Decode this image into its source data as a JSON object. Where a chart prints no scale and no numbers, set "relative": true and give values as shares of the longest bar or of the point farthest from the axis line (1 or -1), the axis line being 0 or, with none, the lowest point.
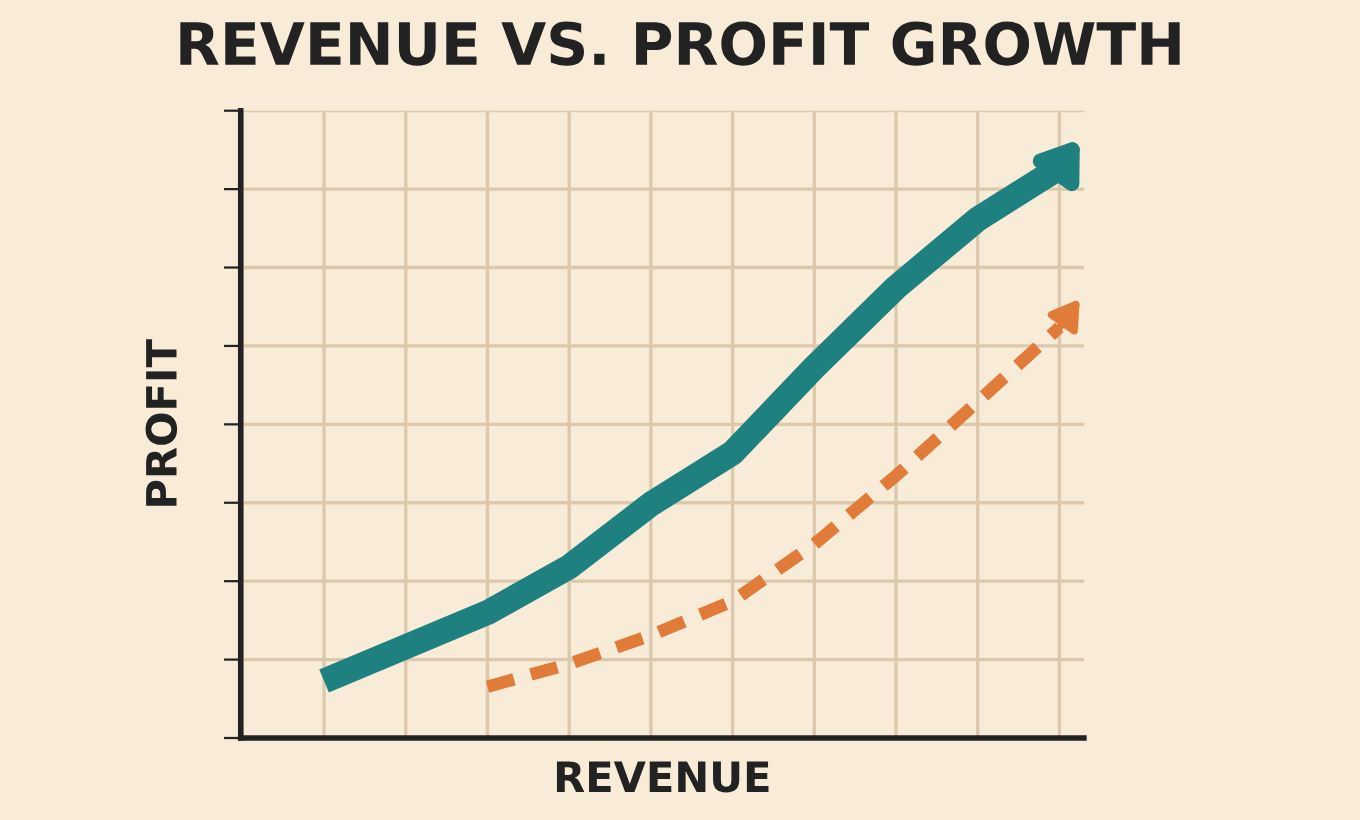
{
  "chart_data": {
    "type": "line",
    "title": "REVENUE VS. PROFIT GROWTH",
    "xlabel": "REVENUE",
    "ylabel": "PROFIT",
    "relative": true,
    "grid": true,
    "tick_labels": false,
    "categories": [
      null,
      null,
      null,
      null,
      null,
      null,
      null,
      null,
      null,
      null
    ],
    "series": [
      {
        "color": "#1f8080",
        "line_style": "solid",
        "values": [
          0.1,
          0.16,
          0.22,
          0.3,
          0.41,
          0.5,
          0.65,
          0.79,
          0.91,
          1.0
        ]
      },
      {
        "color": "#e07b39",
        "line_style": "dashed",
        "values": [
          null,
          null,
          0.09,
          0.13,
          0.18,
          0.24,
          0.34,
          0.46,
          0.59,
          0.72
        ]
      }
    ]
  }
}
